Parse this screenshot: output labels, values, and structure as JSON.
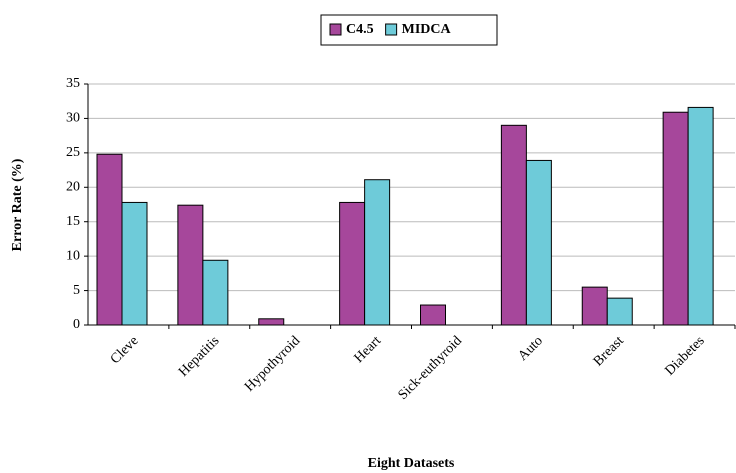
{
  "chart_data": {
    "type": "bar",
    "categories": [
      "Cleve",
      "Hepatitis",
      "Hypothyroid",
      "Heart",
      "Sick-euthyroid",
      "Auto",
      "Breast",
      "Diabetes"
    ],
    "series": [
      {
        "name": "C4.5",
        "color": "#a6479b",
        "values": [
          24.8,
          17.4,
          0.9,
          17.8,
          2.9,
          29.0,
          5.5,
          30.9
        ]
      },
      {
        "name": "MIDCA",
        "color": "#6ecbd9",
        "values": [
          17.8,
          9.4,
          0,
          21.1,
          0,
          23.9,
          3.9,
          31.6
        ]
      }
    ],
    "y_label": "Error Rate (%)",
    "x_label": "Eight Datasets",
    "ylim": [
      0,
      35
    ],
    "yticks": [
      0,
      5,
      10,
      15,
      20,
      25,
      30,
      35
    ],
    "grid": true,
    "legend": "top"
  }
}
